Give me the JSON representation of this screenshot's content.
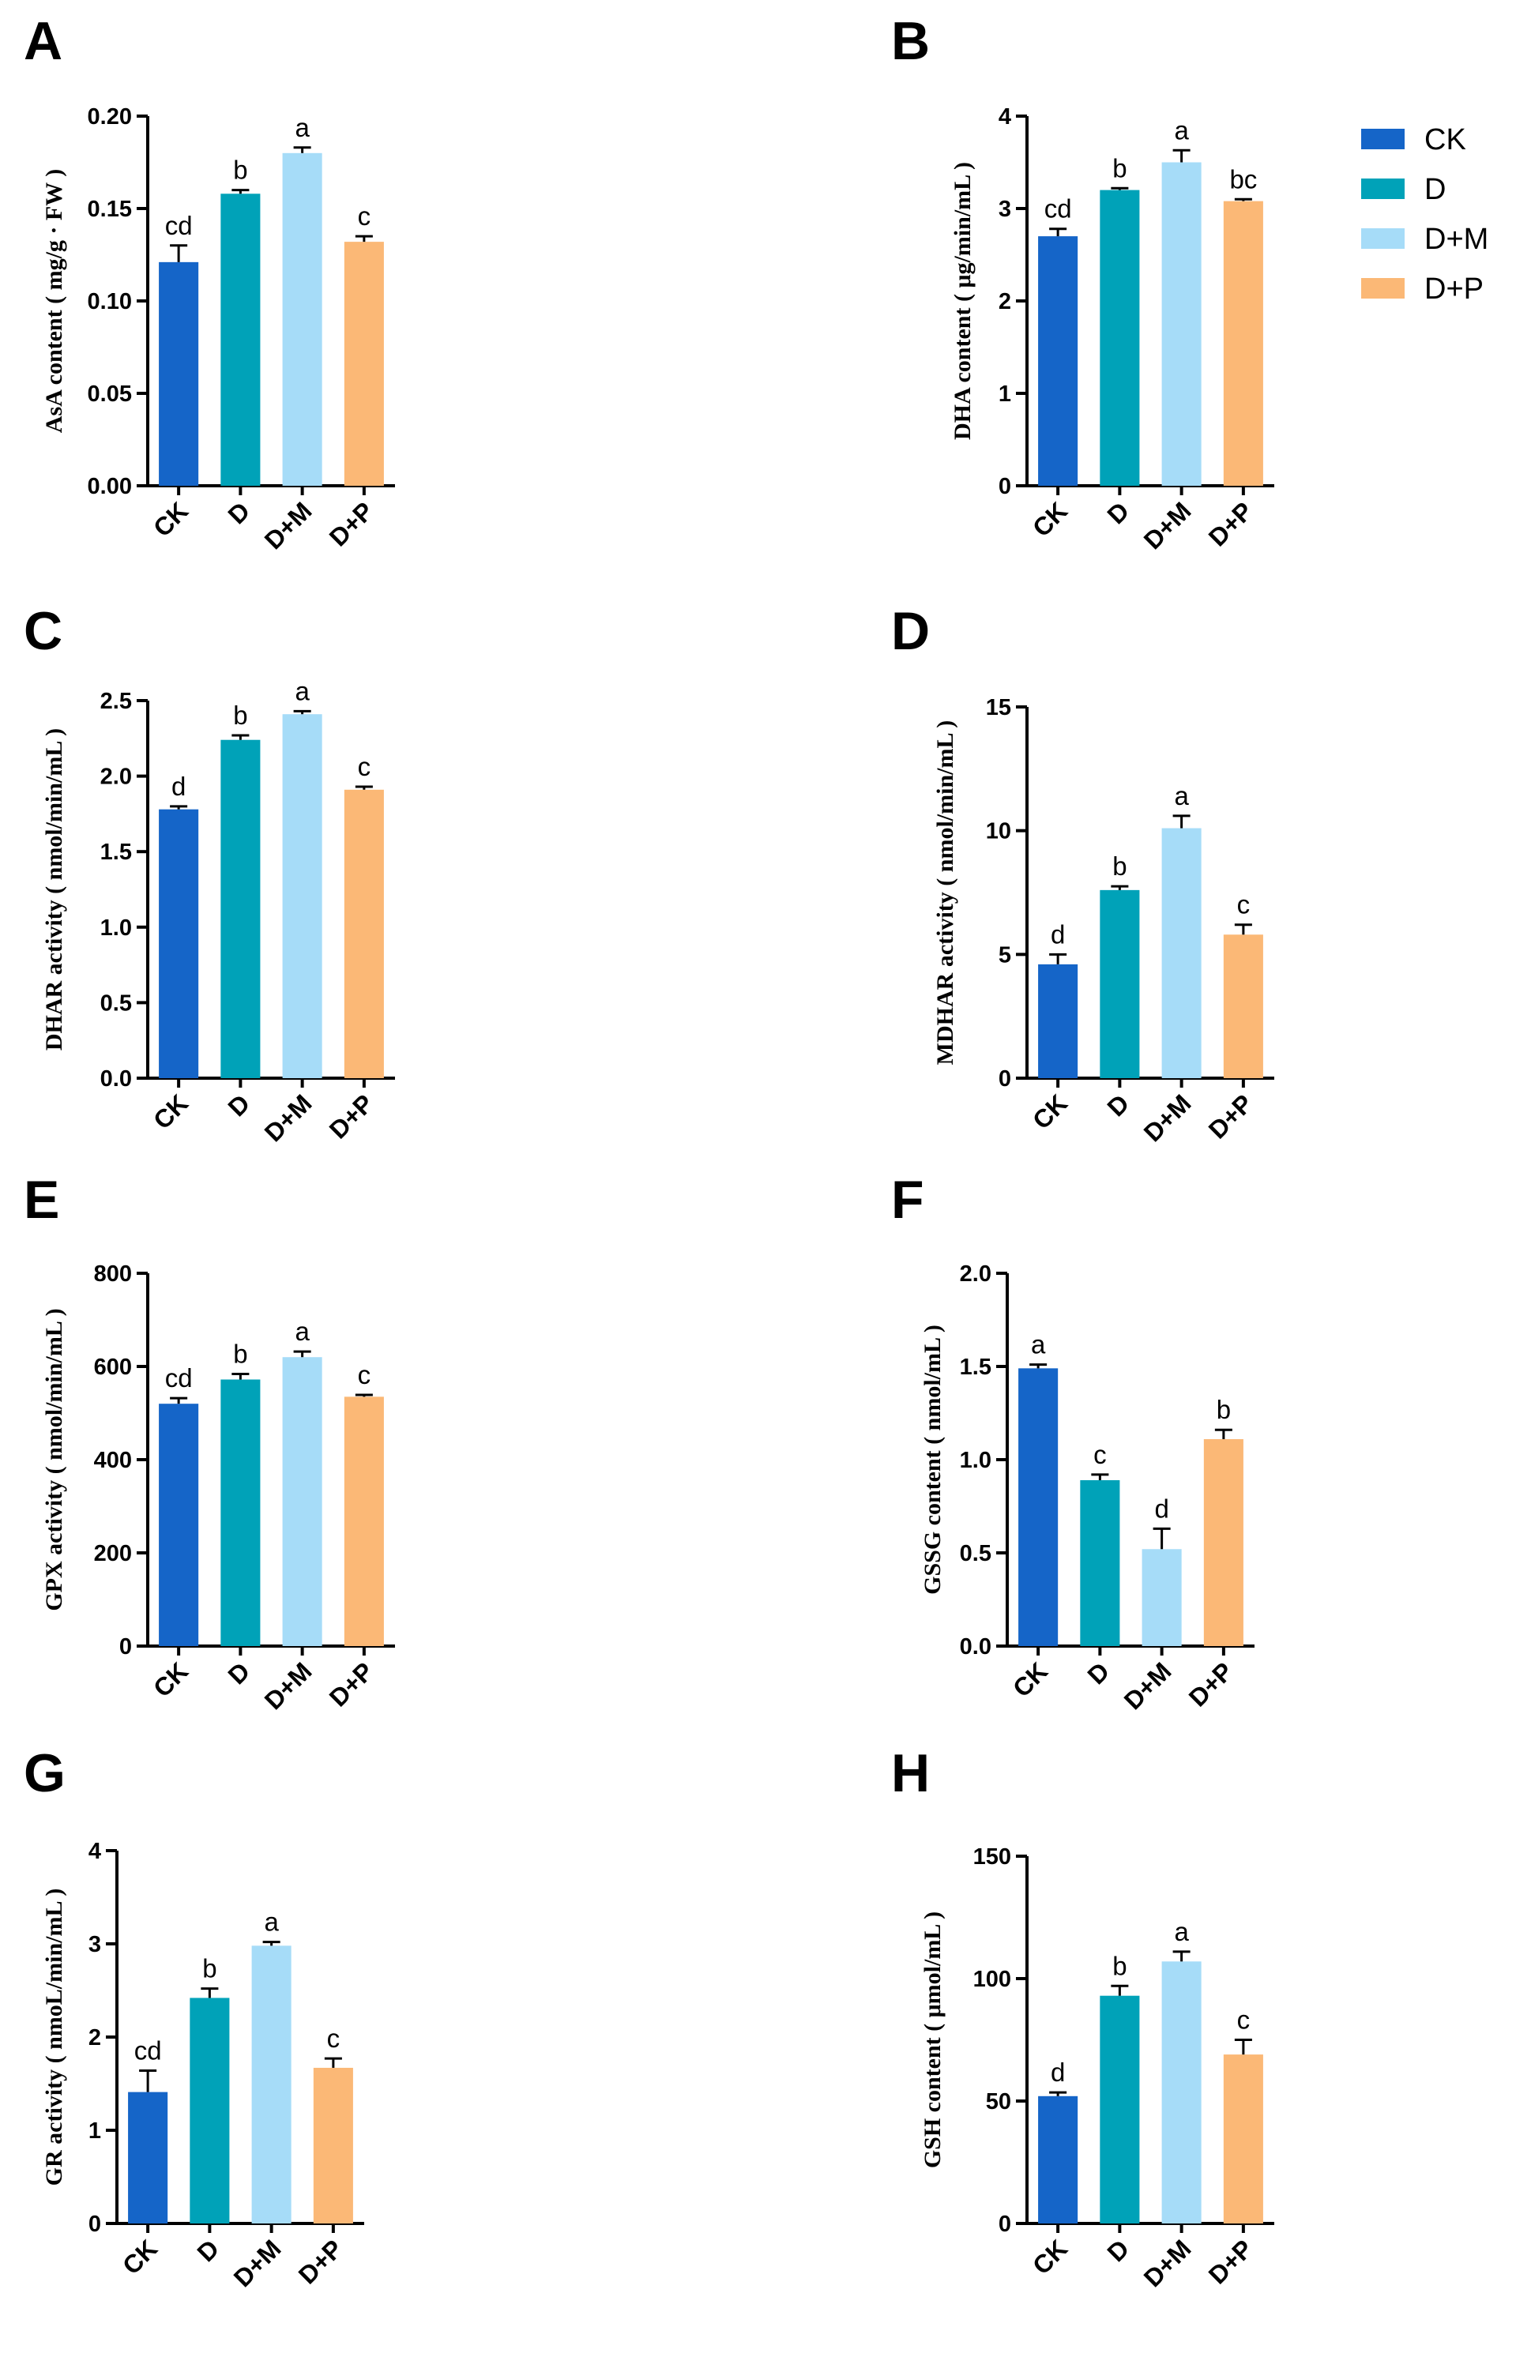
{
  "figure_description_labels": [
    "A",
    "B",
    "C",
    "D",
    "E",
    "F",
    "G",
    "H"
  ],
  "legend": {
    "items": [
      {
        "label": "CK",
        "color": "#1565c8"
      },
      {
        "label": "D",
        "color": "#00a2b8"
      },
      {
        "label": "D+M",
        "color": "#a6dcf8"
      },
      {
        "label": "D+P",
        "color": "#fbb876"
      }
    ]
  },
  "chart_data": [
    {
      "panel": "A",
      "type": "bar",
      "categories": [
        "CK",
        "D",
        "D+M",
        "D+P"
      ],
      "values": [
        0.121,
        0.158,
        0.18,
        0.132
      ],
      "errors": [
        0.009,
        0.002,
        0.003,
        0.003
      ],
      "letters": [
        "cd",
        "b",
        "a",
        "c"
      ],
      "ylabel": "AsA  content ( mg/g · FW )",
      "ylim": [
        0,
        0.2
      ],
      "yticks": [
        "0.00",
        "0.05",
        "0.10",
        "0.15",
        "0.20"
      ],
      "colors": [
        "#1565c8",
        "#00a2b8",
        "#a6dcf8",
        "#fbb876"
      ]
    },
    {
      "panel": "B",
      "type": "bar",
      "categories": [
        "CK",
        "D",
        "D+M",
        "D+P"
      ],
      "values": [
        2.7,
        3.2,
        3.5,
        3.08
      ],
      "errors": [
        0.08,
        0.02,
        0.13,
        0.02
      ],
      "letters": [
        "cd",
        "b",
        "a",
        "bc"
      ],
      "ylabel": "DHA  content ( μg/min/mL )",
      "ylim": [
        0,
        4
      ],
      "yticks": [
        "0",
        "1",
        "2",
        "3",
        "4"
      ],
      "colors": [
        "#1565c8",
        "#00a2b8",
        "#a6dcf8",
        "#fbb876"
      ]
    },
    {
      "panel": "C",
      "type": "bar",
      "categories": [
        "CK",
        "D",
        "D+M",
        "D+P"
      ],
      "values": [
        1.78,
        2.24,
        2.41,
        1.91
      ],
      "errors": [
        0.02,
        0.03,
        0.02,
        0.02
      ],
      "letters": [
        "d",
        "b",
        "a",
        "c"
      ],
      "ylabel": "DHAR activity ( nmol/min/mL )",
      "ylim": [
        0,
        2.5
      ],
      "yticks": [
        "0.0",
        "0.5",
        "1.0",
        "1.5",
        "2.0",
        "2.5"
      ],
      "colors": [
        "#1565c8",
        "#00a2b8",
        "#a6dcf8",
        "#fbb876"
      ]
    },
    {
      "panel": "D",
      "type": "bar",
      "categories": [
        "CK",
        "D",
        "D+M",
        "D+P"
      ],
      "values": [
        4.6,
        7.6,
        10.1,
        5.8
      ],
      "errors": [
        0.4,
        0.15,
        0.5,
        0.4
      ],
      "letters": [
        "d",
        "b",
        "a",
        "c"
      ],
      "ylabel": "MDHAR activity ( nmol/min/mL )",
      "ylim": [
        0,
        15
      ],
      "yticks": [
        "0",
        "5",
        "10",
        "15"
      ],
      "colors": [
        "#1565c8",
        "#00a2b8",
        "#a6dcf8",
        "#fbb876"
      ]
    },
    {
      "panel": "E",
      "type": "bar",
      "categories": [
        "CK",
        "D",
        "D+M",
        "D+P"
      ],
      "values": [
        520,
        572,
        620,
        535
      ],
      "errors": [
        12,
        12,
        12,
        4
      ],
      "letters": [
        "cd",
        "b",
        "a",
        "c"
      ],
      "ylabel": "GPX activity ( nmol/min/mL )",
      "ylim": [
        0,
        800
      ],
      "yticks": [
        "0",
        "200",
        "400",
        "600",
        "800"
      ],
      "colors": [
        "#1565c8",
        "#00a2b8",
        "#a6dcf8",
        "#fbb876"
      ]
    },
    {
      "panel": "F",
      "type": "bar",
      "categories": [
        "CK",
        "D",
        "D+M",
        "D+P"
      ],
      "values": [
        1.49,
        0.89,
        0.52,
        1.11
      ],
      "errors": [
        0.02,
        0.03,
        0.11,
        0.05
      ],
      "letters": [
        "a",
        "c",
        "d",
        "b"
      ],
      "ylabel": "GSSG  content ( nmol/mL )",
      "ylim": [
        0,
        2.0
      ],
      "yticks": [
        "0.0",
        "0.5",
        "1.0",
        "1.5",
        "2.0"
      ],
      "colors": [
        "#1565c8",
        "#00a2b8",
        "#a6dcf8",
        "#fbb876"
      ]
    },
    {
      "panel": "G",
      "type": "bar",
      "categories": [
        "CK",
        "D",
        "D+M",
        "D+P"
      ],
      "values": [
        1.41,
        2.42,
        2.98,
        1.67
      ],
      "errors": [
        0.23,
        0.1,
        0.04,
        0.1
      ],
      "letters": [
        "cd",
        "b",
        "a",
        "c"
      ],
      "ylabel": "GR activity ( nmoL/min/mL )",
      "ylim": [
        0,
        4
      ],
      "yticks": [
        "0",
        "1",
        "2",
        "3",
        "4"
      ],
      "colors": [
        "#1565c8",
        "#00a2b8",
        "#a6dcf8",
        "#fbb876"
      ]
    },
    {
      "panel": "H",
      "type": "bar",
      "categories": [
        "CK",
        "D",
        "D+M",
        "D+P"
      ],
      "values": [
        52,
        93,
        107,
        69
      ],
      "errors": [
        1.5,
        4,
        4,
        6
      ],
      "letters": [
        "d",
        "b",
        "a",
        "c"
      ],
      "ylabel": "GSH  content ( μmol/mL )",
      "ylim": [
        0,
        150
      ],
      "yticks": [
        "0",
        "50",
        "100",
        "150"
      ],
      "colors": [
        "#1565c8",
        "#00a2b8",
        "#a6dcf8",
        "#fbb876"
      ]
    }
  ]
}
